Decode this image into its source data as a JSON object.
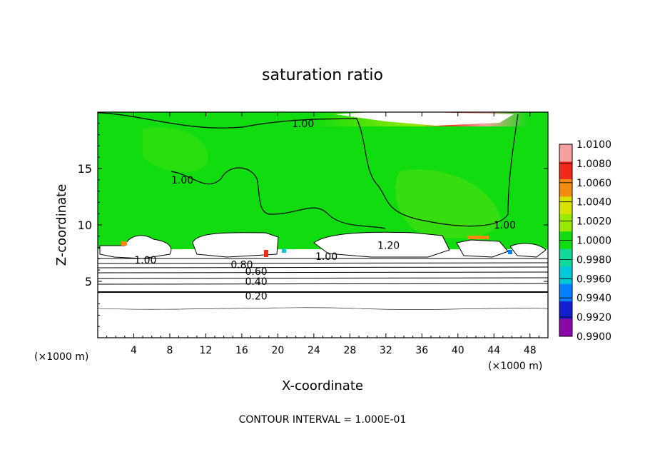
{
  "chart_data": {
    "type": "heatmap",
    "title": "saturation ratio",
    "xlabel": "X-coordinate",
    "ylabel": "Z-coordinate",
    "x_unit_left": "(×1000 m)",
    "x_unit_right": "(×1000 m)",
    "xlim": [
      0,
      50
    ],
    "ylim": [
      0,
      20
    ],
    "xticks": [
      4,
      8,
      12,
      16,
      20,
      24,
      28,
      32,
      36,
      40,
      44,
      48
    ],
    "yticks": [
      5,
      10,
      15
    ],
    "footer": "CONTOUR INTERVAL = 1.000E-01",
    "colorbar": {
      "levels": [
        "1.0100",
        "1.0080",
        "1.0060",
        "1.0040",
        "1.0020",
        "1.0000",
        "0.9980",
        "0.9960",
        "0.9940",
        "0.9920",
        "0.9900"
      ],
      "colors": [
        "#f4a0a0",
        "#ee2a1a",
        "#f48a10",
        "#d8e400",
        "#98e800",
        "#10dc10",
        "#12d89a",
        "#00c8d8",
        "#0080ff",
        "#1420d0",
        "#8a08a8"
      ]
    },
    "contour_labels": [
      {
        "text": "1.00",
        "x": 22.8,
        "z": 19.0
      },
      {
        "text": "1.00",
        "x": 9.4,
        "z": 14.0
      },
      {
        "text": "1.00",
        "x": 45.2,
        "z": 10.0
      },
      {
        "text": "1.20",
        "x": 32.3,
        "z": 8.2
      },
      {
        "text": "1.00",
        "x": 5.3,
        "z": 6.9
      },
      {
        "text": "1.00",
        "x": 25.4,
        "z": 7.2
      },
      {
        "text": "0.80",
        "x": 16.0,
        "z": 6.5
      },
      {
        "text": "0.60",
        "x": 17.6,
        "z": 5.9
      },
      {
        "text": "0.40",
        "x": 17.6,
        "z": 5.0
      },
      {
        "text": "0.20",
        "x": 17.6,
        "z": 3.7
      }
    ],
    "regions": {
      "upper_green": {
        "value": 1.0,
        "z_range": [
          8,
          20
        ]
      },
      "lower_white": {
        "value": "< 0.99",
        "z_range": [
          0,
          8
        ]
      }
    }
  }
}
